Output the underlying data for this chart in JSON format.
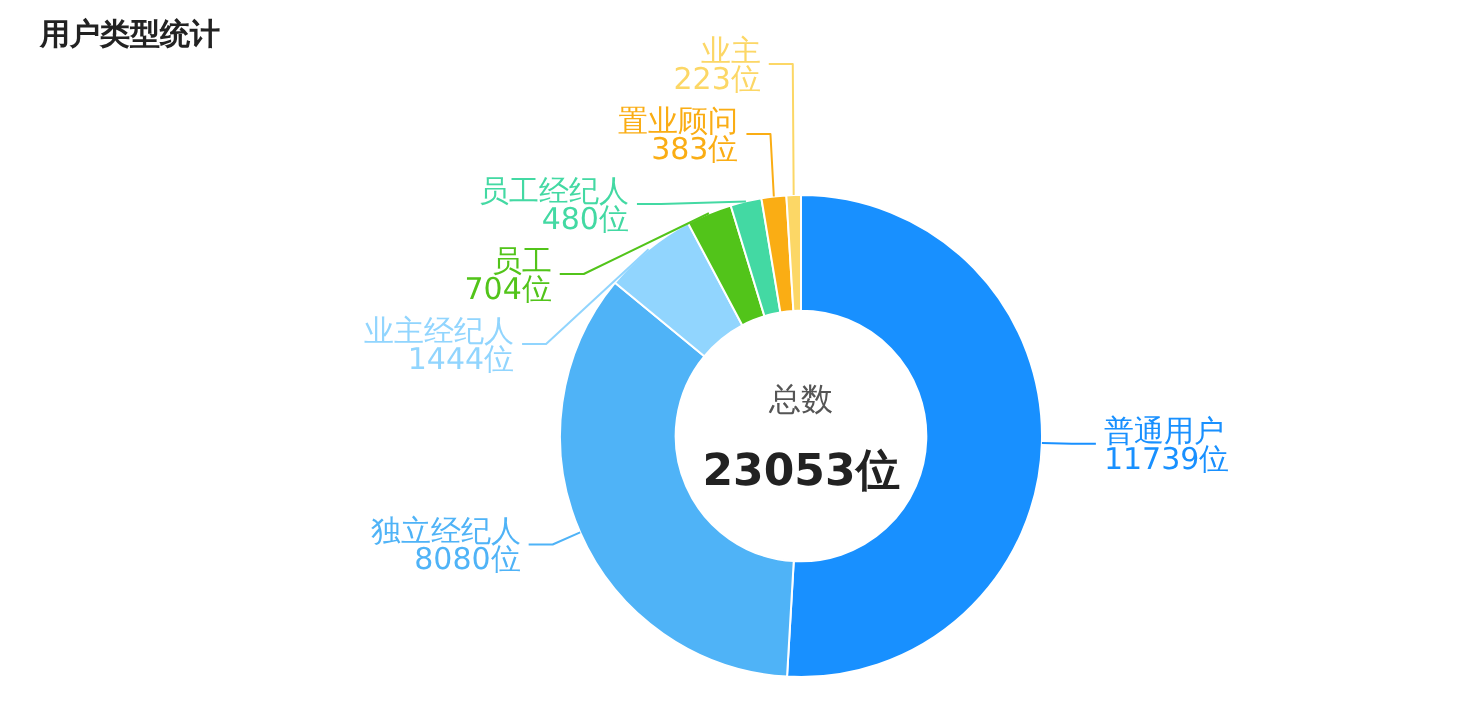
{
  "chart_data": {
    "type": "donut",
    "title": "用户类型统计",
    "categories": [
      "普通用户",
      "独立经纪人",
      "业主经纪人",
      "员工",
      "员工经纪人",
      "置业顾问",
      "业主"
    ],
    "values": [
      11739,
      8080,
      1444,
      704,
      480,
      383,
      223
    ],
    "value_labels": [
      "11739位",
      "8080位",
      "1444位",
      "704位",
      "480位",
      "383位",
      "223位"
    ],
    "colors": [
      "#1890ff",
      "#4fb3f7",
      "#91d5fe",
      "#52c41a",
      "#43d9a3",
      "#faad14",
      "#fcd766"
    ],
    "annotations": [
      "总数",
      "23053位"
    ],
    "legend": false
  }
}
